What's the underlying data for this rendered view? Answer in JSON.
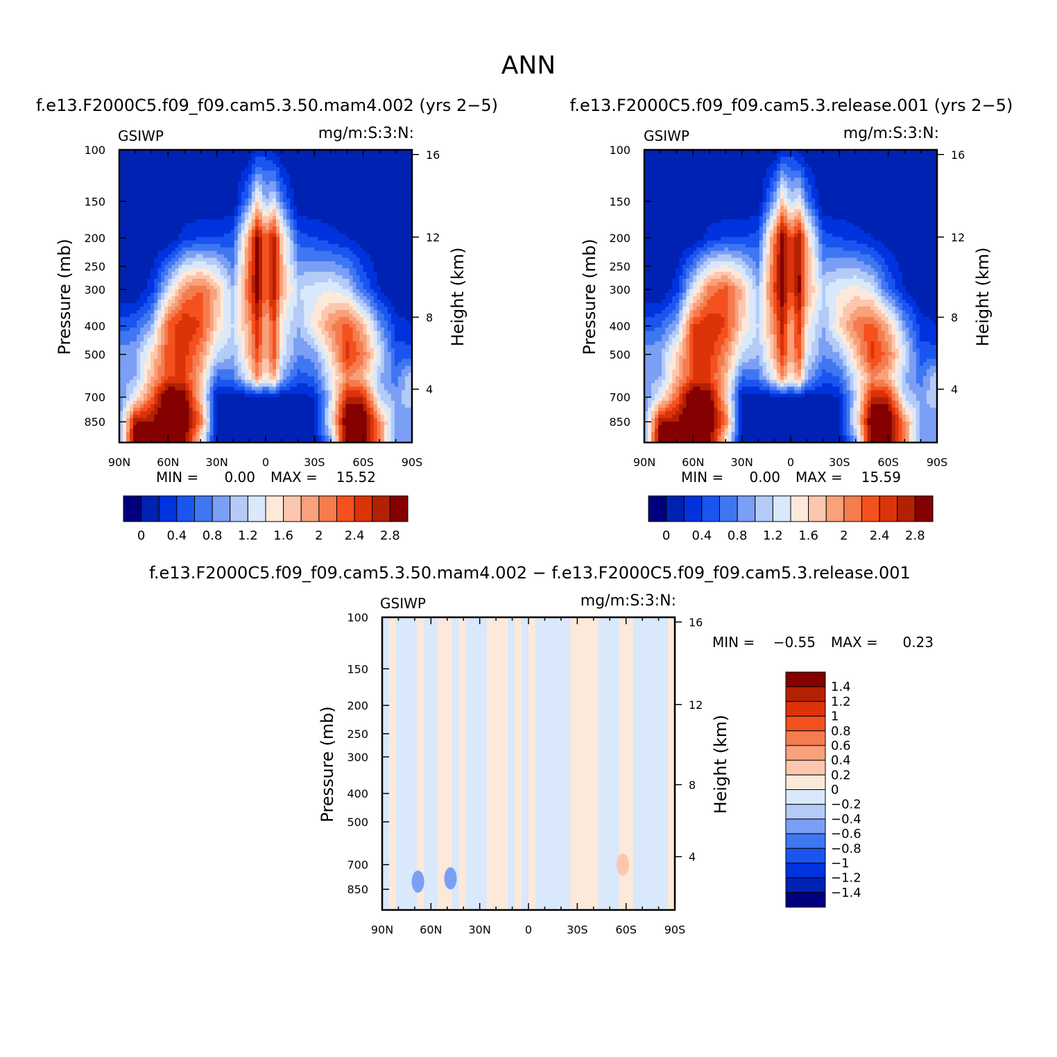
{
  "figure": {
    "title": "ANN"
  },
  "chart_data": [
    {
      "type": "heatmap",
      "id": "model1",
      "title": "f.e13.F2000C5.f09_f09.cam5.3.50.mam4.002 (yrs 2−5)",
      "left_label": "GSIWP",
      "right_label": "mg/m:S:3:N:",
      "ylabel": "Pressure (mb)",
      "y2label": "Height (km)",
      "x_ticks": [
        "90N",
        "60N",
        "30N",
        "0",
        "30S",
        "60S",
        "90S"
      ],
      "y_ticks": [
        100,
        150,
        200,
        250,
        300,
        400,
        500,
        700,
        850
      ],
      "y_ticks_text": [
        "100",
        "150",
        "200",
        "250",
        "300",
        "400",
        "500",
        "700",
        "850"
      ],
      "y2_ticks": [
        "16",
        "12",
        "8",
        "4"
      ],
      "ylim": [
        1000,
        100
      ],
      "stats": {
        "min_label": "MIN =",
        "min": "0.00",
        "max_label": "MAX =",
        "max": "15.52"
      },
      "colorbar": {
        "colors": [
          "#00007f",
          "#0022b2",
          "#0033dd",
          "#1a55f0",
          "#3f77f2",
          "#7b9ff5",
          "#b4cbf7",
          "#d9e8fb",
          "#fde9da",
          "#fcc7ae",
          "#f8a17a",
          "#f57c4f",
          "#f4511e",
          "#dc3309",
          "#b22104",
          "#850000"
        ],
        "labels": [
          "0",
          "0.4",
          "0.8",
          "1.2",
          "1.6",
          "2",
          "2.4",
          "2.8"
        ]
      },
      "field": {
        "lat_n_to_s": [
          90,
          80,
          70,
          60,
          50,
          40,
          30,
          20,
          10,
          5,
          0,
          -5,
          -10,
          -20,
          -30,
          -40,
          -50,
          -60,
          -70,
          -80,
          -90
        ],
        "pressure": [
          100,
          150,
          200,
          300,
          400,
          500,
          600,
          700,
          850,
          950
        ],
        "columns": [
          [
            0,
            0,
            0,
            0,
            0.5,
            0.9,
            0.9,
            0.8,
            0.9,
            0.9
          ],
          [
            0,
            0,
            0,
            0,
            0.6,
            1.0,
            1.0,
            1.4,
            2.8,
            3.0
          ],
          [
            0,
            0,
            0,
            0.3,
            1.0,
            1.6,
            1.8,
            2.2,
            2.8,
            3.0
          ],
          [
            0,
            0,
            0,
            1.2,
            2.3,
            2.3,
            2.4,
            3.2,
            3.3,
            3.2
          ],
          [
            0,
            0,
            0.3,
            2.0,
            2.6,
            2.5,
            2.4,
            3.0,
            3.1,
            3.0
          ],
          [
            0,
            0,
            0.4,
            2.2,
            2.4,
            2.0,
            1.8,
            1.7,
            2.2,
            1.6
          ],
          [
            0,
            0,
            0.4,
            1.8,
            1.6,
            1.2,
            0.6,
            0.1,
            0.1,
            0.1
          ],
          [
            0,
            0,
            0.5,
            1.0,
            1.2,
            1.0,
            0.7,
            0.1,
            0.1,
            0.1
          ],
          [
            0,
            0.8,
            2.0,
            2.3,
            1.9,
            1.8,
            1.4,
            0.1,
            0.1,
            0.1
          ],
          [
            0.2,
            1.6,
            2.9,
            3.0,
            2.6,
            2.4,
            2.0,
            0.2,
            0.1,
            0.1
          ],
          [
            0.3,
            1.0,
            2.2,
            2.2,
            1.7,
            1.7,
            1.4,
            0.2,
            0.1,
            0.1
          ],
          [
            0.1,
            1.3,
            2.7,
            2.8,
            2.4,
            2.4,
            1.9,
            0.2,
            0.1,
            0.1
          ],
          [
            0,
            0.7,
            1.7,
            1.8,
            1.4,
            1.3,
            1.0,
            0.1,
            0.1,
            0.1
          ],
          [
            0,
            0,
            0.5,
            1.2,
            1.0,
            0.8,
            0.5,
            0.1,
            0.1,
            0.1
          ],
          [
            0,
            0,
            0.4,
            1.3,
            1.5,
            0.9,
            0.6,
            0.2,
            0.1,
            0.1
          ],
          [
            0,
            0,
            0.3,
            1.4,
            2.0,
            1.6,
            1.3,
            1.2,
            1.4,
            1.0
          ],
          [
            0,
            0,
            0.2,
            1.2,
            2.3,
            2.5,
            2.0,
            2.6,
            3.2,
            3.0
          ],
          [
            0,
            0,
            0.1,
            0.6,
            1.8,
            2.1,
            1.8,
            2.6,
            3.2,
            3.0
          ],
          [
            0,
            0,
            0,
            0.2,
            0.9,
            1.3,
            1.0,
            1.2,
            2.0,
            2.0
          ],
          [
            0,
            0,
            0,
            0,
            0.3,
            0.5,
            0.7,
            0.9,
            1.0,
            0.9
          ],
          [
            0,
            0,
            0,
            0,
            0.2,
            0.5,
            1.2,
            1.2,
            0.8,
            0.8
          ]
        ]
      }
    },
    {
      "type": "heatmap",
      "id": "model2",
      "title": "f.e13.F2000C5.f09_f09.cam5.3.release.001 (yrs 2−5)",
      "left_label": "GSIWP",
      "right_label": "mg/m:S:3:N:",
      "ylabel": "Pressure (mb)",
      "y2label": "Height (km)",
      "x_ticks": [
        "90N",
        "60N",
        "30N",
        "0",
        "30S",
        "60S",
        "90S"
      ],
      "y_ticks": [
        100,
        150,
        200,
        250,
        300,
        400,
        500,
        700,
        850
      ],
      "y_ticks_text": [
        "100",
        "150",
        "200",
        "250",
        "300",
        "400",
        "500",
        "700",
        "850"
      ],
      "y2_ticks": [
        "16",
        "12",
        "8",
        "4"
      ],
      "ylim": [
        1000,
        100
      ],
      "stats": {
        "min_label": "MIN =",
        "min": "0.00",
        "max_label": "MAX =",
        "max": "15.59"
      },
      "colorbar": {
        "colors": [
          "#00007f",
          "#0022b2",
          "#0033dd",
          "#1a55f0",
          "#3f77f2",
          "#7b9ff5",
          "#b4cbf7",
          "#d9e8fb",
          "#fde9da",
          "#fcc7ae",
          "#f8a17a",
          "#f57c4f",
          "#f4511e",
          "#dc3309",
          "#b22104",
          "#850000"
        ],
        "labels": [
          "0",
          "0.4",
          "0.8",
          "1.2",
          "1.6",
          "2",
          "2.4",
          "2.8"
        ]
      },
      "field": {
        "lat_n_to_s": [
          90,
          80,
          70,
          60,
          50,
          40,
          30,
          20,
          10,
          5,
          0,
          -5,
          -10,
          -20,
          -30,
          -40,
          -50,
          -60,
          -70,
          -80,
          -90
        ],
        "pressure": [
          100,
          150,
          200,
          300,
          400,
          500,
          600,
          700,
          850,
          950
        ],
        "columns": [
          [
            0,
            0,
            0,
            0,
            0.5,
            0.9,
            0.9,
            0.8,
            0.9,
            0.9
          ],
          [
            0,
            0,
            0,
            0,
            0.6,
            1.0,
            1.0,
            1.4,
            2.8,
            3.0
          ],
          [
            0,
            0,
            0,
            0.3,
            1.0,
            1.6,
            1.8,
            2.2,
            2.8,
            3.0
          ],
          [
            0,
            0,
            0,
            1.3,
            2.4,
            2.4,
            2.4,
            3.2,
            3.3,
            3.2
          ],
          [
            0,
            0,
            0.3,
            2.1,
            2.6,
            2.5,
            2.4,
            3.0,
            3.1,
            3.0
          ],
          [
            0,
            0,
            0.4,
            2.3,
            2.4,
            2.0,
            1.8,
            1.7,
            2.2,
            1.6
          ],
          [
            0,
            0,
            0.4,
            1.8,
            1.6,
            1.2,
            0.6,
            0.1,
            0.1,
            0.1
          ],
          [
            0,
            0,
            0.5,
            1.0,
            1.2,
            1.0,
            0.7,
            0.1,
            0.1,
            0.1
          ],
          [
            0,
            0.9,
            2.1,
            2.4,
            2.0,
            1.8,
            1.4,
            0.1,
            0.1,
            0.1
          ],
          [
            0.2,
            1.7,
            3.0,
            3.0,
            2.7,
            2.5,
            2.0,
            0.2,
            0.1,
            0.1
          ],
          [
            0.3,
            1.1,
            2.3,
            2.3,
            1.8,
            1.8,
            1.4,
            0.2,
            0.1,
            0.1
          ],
          [
            0.1,
            1.4,
            2.8,
            2.9,
            2.5,
            2.4,
            1.9,
            0.2,
            0.1,
            0.1
          ],
          [
            0,
            0.7,
            1.8,
            1.9,
            1.5,
            1.3,
            1.0,
            0.1,
            0.1,
            0.1
          ],
          [
            0,
            0,
            0.5,
            1.2,
            1.0,
            0.8,
            0.5,
            0.1,
            0.1,
            0.1
          ],
          [
            0,
            0,
            0.4,
            1.4,
            1.6,
            1.0,
            0.6,
            0.2,
            0.1,
            0.1
          ],
          [
            0,
            0,
            0.3,
            1.5,
            2.1,
            1.7,
            1.3,
            1.2,
            1.4,
            1.0
          ],
          [
            0,
            0,
            0.2,
            1.3,
            2.3,
            2.5,
            2.0,
            2.6,
            3.2,
            3.0
          ],
          [
            0,
            0,
            0.1,
            0.6,
            1.8,
            2.1,
            1.8,
            2.6,
            3.2,
            3.0
          ],
          [
            0,
            0,
            0,
            0.2,
            0.9,
            1.3,
            1.0,
            1.2,
            2.0,
            2.0
          ],
          [
            0,
            0,
            0,
            0,
            0.3,
            0.5,
            0.7,
            0.9,
            1.0,
            0.9
          ],
          [
            0,
            0,
            0,
            0,
            0.2,
            0.5,
            1.2,
            1.2,
            0.8,
            0.8
          ]
        ]
      }
    },
    {
      "type": "heatmap",
      "id": "diff",
      "title": "f.e13.F2000C5.f09_f09.cam5.3.50.mam4.002 − f.e13.F2000C5.f09_f09.cam5.3.release.001",
      "left_label": "GSIWP",
      "right_label": "mg/m:S:3:N:",
      "ylabel": "Pressure (mb)",
      "y2label": "Height (km)",
      "x_ticks": [
        "90N",
        "60N",
        "30N",
        "0",
        "30S",
        "60S",
        "90S"
      ],
      "y_ticks": [
        100,
        150,
        200,
        250,
        300,
        400,
        500,
        700,
        850
      ],
      "y_ticks_text": [
        "100",
        "150",
        "200",
        "250",
        "300",
        "400",
        "500",
        "700",
        "850"
      ],
      "y2_ticks": [
        "16",
        "12",
        "8",
        "4"
      ],
      "ylim": [
        1000,
        100
      ],
      "stats": {
        "min_label": "MIN =",
        "min": "−0.55",
        "max_label": "MAX =",
        "max": "0.23"
      },
      "colorbar": {
        "colors": [
          "#00007f",
          "#0022b2",
          "#0033dd",
          "#1a55f0",
          "#3f77f2",
          "#7b9ff5",
          "#b4cbf7",
          "#d9e8fb",
          "#fde9da",
          "#fcc7ae",
          "#f8a17a",
          "#f57c4f",
          "#f4511e",
          "#dc3309",
          "#b22104",
          "#850000"
        ],
        "labels": [
          "1.4",
          "1.2",
          "1",
          "0.8",
          "0.6",
          "0.4",
          "0.2",
          "0",
          "−0.2",
          "−0.4",
          "−0.6",
          "−0.8",
          "−1",
          "−1.2",
          "−1.4"
        ]
      },
      "pattern_columns": [
        "B",
        "P",
        "B",
        "B",
        "B",
        "P",
        "B",
        "B",
        "P",
        "P",
        "B",
        "P",
        "B",
        "B",
        "B",
        "P",
        "P",
        "P",
        "B",
        "P",
        "B",
        "P",
        "B",
        "B",
        "B",
        "B",
        "B",
        "P",
        "P",
        "P",
        "P",
        "B",
        "B",
        "B",
        "P",
        "P",
        "B",
        "B",
        "B",
        "B",
        "B",
        "P"
      ],
      "blobs": [
        {
          "lat": 68,
          "pressure": 800,
          "value": -0.5
        },
        {
          "lat": 48,
          "pressure": 780,
          "value": -0.5
        },
        {
          "lat": -58,
          "pressure": 700,
          "value": 0.3
        }
      ]
    }
  ]
}
